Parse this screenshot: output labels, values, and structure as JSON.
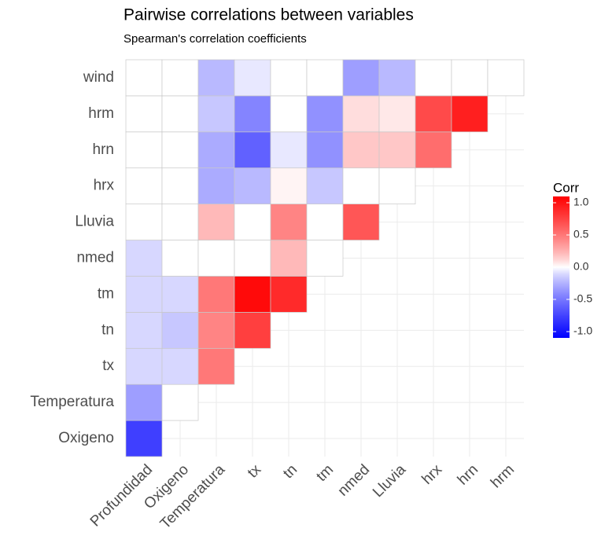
{
  "chart_data": {
    "type": "heatmap",
    "title": "Pairwise correlations between variables",
    "subtitle": "Spearman's correlation coefficients",
    "x_categories": [
      "Profundidad",
      "Oxigeno",
      "Temperatura",
      "tx",
      "tn",
      "tm",
      "nmed",
      "Lluvia",
      "hrx",
      "hrn",
      "hrm"
    ],
    "y_categories": [
      "Oxigeno",
      "Temperatura",
      "tx",
      "tn",
      "tm",
      "nmed",
      "Lluvia",
      "hrx",
      "hrn",
      "hrm",
      "wind"
    ],
    "values": [
      [
        -0.7
      ],
      [
        -0.3,
        0
      ],
      [
        -0.1,
        -0.1,
        0.45
      ],
      [
        -0.1,
        -0.15,
        0.4,
        0.7
      ],
      [
        -0.1,
        -0.1,
        0.45,
        0.95,
        0.8
      ],
      [
        -0.1,
        0,
        0,
        0,
        0.2,
        0
      ],
      [
        0,
        0,
        0.2,
        0,
        0.4,
        0,
        0.6
      ],
      [
        0,
        0,
        -0.25,
        -0.2,
        0.02,
        -0.15,
        0,
        0
      ],
      [
        0,
        0,
        -0.25,
        -0.55,
        -0.05,
        -0.35,
        0.15,
        0.15,
        0.5
      ],
      [
        0,
        0,
        -0.15,
        -0.4,
        0,
        -0.35,
        0.08,
        0.05,
        0.65,
        0.85
      ],
      [
        0,
        0,
        -0.2,
        -0.05,
        0,
        0,
        -0.3,
        -0.2,
        0,
        0,
        0
      ]
    ],
    "colors": {
      "low": "#0000ff",
      "mid": "#ffffff",
      "high": "#ff0000"
    },
    "legend_title": "Corr",
    "clim": [
      -1,
      1
    ],
    "cticks": [
      {
        "value": -1,
        "label": "-1.0"
      },
      -0.5,
      {
        "value": 0,
        "label": "0.0"
      },
      0.5,
      {
        "value": 1,
        "label": "1.0"
      }
    ],
    "grid": true
  }
}
